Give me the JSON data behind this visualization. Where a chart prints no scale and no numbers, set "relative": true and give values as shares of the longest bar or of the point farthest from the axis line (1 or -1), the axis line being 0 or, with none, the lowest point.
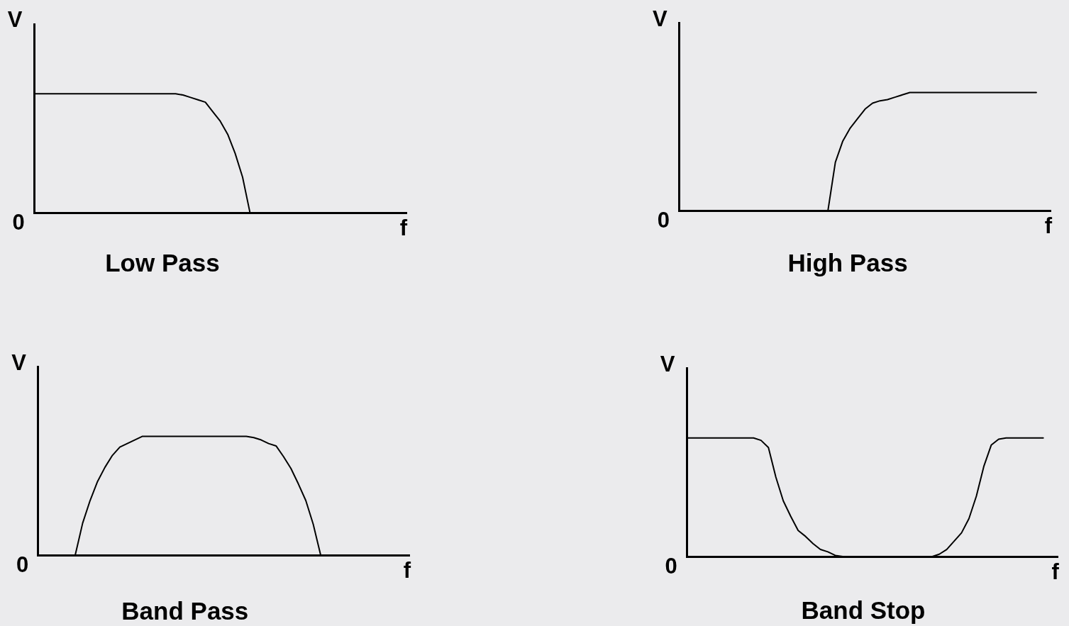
{
  "chart_data": [
    {
      "type": "line",
      "title": "Low Pass",
      "xlabel": "f",
      "ylabel": "V",
      "relative": true,
      "annotations": [
        "0"
      ],
      "color": "#000000",
      "categories": [
        null,
        null,
        null,
        null,
        null,
        null,
        null,
        null,
        null,
        null,
        null,
        null,
        null,
        null,
        null,
        null,
        null,
        null,
        null,
        null,
        null,
        null,
        null,
        null,
        null,
        null,
        null,
        null,
        null,
        null,
        null,
        null,
        null,
        null,
        null,
        null,
        null,
        null,
        null,
        null,
        null,
        null,
        null,
        null,
        null,
        null,
        null,
        null,
        null,
        null,
        null
      ],
      "values": [
        1,
        1,
        1,
        1,
        1,
        1,
        1,
        1,
        1,
        1,
        1,
        1,
        1,
        1,
        1,
        1,
        1,
        1,
        1,
        1,
        0.99,
        0.97,
        0.95,
        0.93,
        0.85,
        0.77,
        0.66,
        0.5,
        0.3,
        0,
        null,
        null,
        null,
        null,
        null,
        null,
        null,
        null,
        null,
        null,
        null,
        null,
        null,
        null,
        null,
        null,
        null,
        null,
        null,
        null,
        null
      ]
    },
    {
      "type": "line",
      "title": "High Pass",
      "xlabel": "f",
      "ylabel": "V",
      "relative": true,
      "annotations": [
        "0"
      ],
      "color": "#000000",
      "categories": [
        null,
        null,
        null,
        null,
        null,
        null,
        null,
        null,
        null,
        null,
        null,
        null,
        null,
        null,
        null,
        null,
        null,
        null,
        null,
        null,
        null,
        null,
        null,
        null,
        null,
        null,
        null,
        null,
        null,
        null,
        null,
        null,
        null,
        null,
        null,
        null,
        null,
        null,
        null,
        null,
        null,
        null,
        null,
        null,
        null,
        null,
        null,
        null,
        null,
        null,
        null
      ],
      "values": [
        null,
        null,
        null,
        null,
        null,
        null,
        null,
        null,
        null,
        null,
        null,
        null,
        null,
        null,
        null,
        null,
        null,
        null,
        null,
        null,
        0,
        0.41,
        0.59,
        0.7,
        0.78,
        0.86,
        0.91,
        0.93,
        0.94,
        0.96,
        0.98,
        1,
        1,
        1,
        1,
        1,
        1,
        1,
        1,
        1,
        1,
        1,
        1,
        1,
        1,
        1,
        1,
        1,
        1,
        null,
        null
      ]
    },
    {
      "type": "line",
      "title": "Band Pass",
      "xlabel": "f",
      "ylabel": "V",
      "relative": true,
      "annotations": [
        "0"
      ],
      "color": "#000000",
      "categories": [
        null,
        null,
        null,
        null,
        null,
        null,
        null,
        null,
        null,
        null,
        null,
        null,
        null,
        null,
        null,
        null,
        null,
        null,
        null,
        null,
        null,
        null,
        null,
        null,
        null,
        null,
        null,
        null,
        null,
        null,
        null,
        null,
        null,
        null,
        null,
        null,
        null,
        null,
        null,
        null,
        null,
        null,
        null,
        null,
        null,
        null,
        null,
        null,
        null,
        null,
        null
      ],
      "values": [
        null,
        null,
        null,
        null,
        null,
        0,
        0.27,
        0.46,
        0.62,
        0.74,
        0.84,
        0.91,
        0.94,
        0.97,
        1,
        1,
        1,
        1,
        1,
        1,
        1,
        1,
        1,
        1,
        1,
        1,
        1,
        1,
        1,
        0.99,
        0.97,
        0.94,
        0.92,
        0.83,
        0.73,
        0.6,
        0.46,
        0.26,
        0,
        null,
        null,
        null,
        null,
        null,
        null,
        null,
        null,
        null,
        null,
        null,
        null
      ]
    },
    {
      "type": "line",
      "title": "Band Stop",
      "xlabel": "f",
      "ylabel": "V",
      "relative": true,
      "annotations": [
        "0"
      ],
      "color": "#000000",
      "categories": [
        null,
        null,
        null,
        null,
        null,
        null,
        null,
        null,
        null,
        null,
        null,
        null,
        null,
        null,
        null,
        null,
        null,
        null,
        null,
        null,
        null,
        null,
        null,
        null,
        null,
        null,
        null,
        null,
        null,
        null,
        null,
        null,
        null,
        null,
        null,
        null,
        null,
        null,
        null,
        null,
        null,
        null,
        null,
        null,
        null,
        null,
        null,
        null,
        null,
        null,
        null
      ],
      "values": [
        1,
        1,
        1,
        1,
        1,
        1,
        1,
        1,
        1,
        1,
        0.98,
        0.92,
        0.67,
        0.47,
        0.34,
        0.22,
        0.17,
        0.11,
        0.06,
        0.04,
        0.01,
        0,
        0,
        0,
        0,
        0,
        0,
        0,
        0,
        0,
        0,
        0,
        0,
        0,
        0.02,
        0.06,
        0.13,
        0.2,
        0.32,
        0.51,
        0.76,
        0.94,
        0.99,
        1,
        1,
        1,
        1,
        1,
        1,
        null,
        null
      ]
    }
  ]
}
